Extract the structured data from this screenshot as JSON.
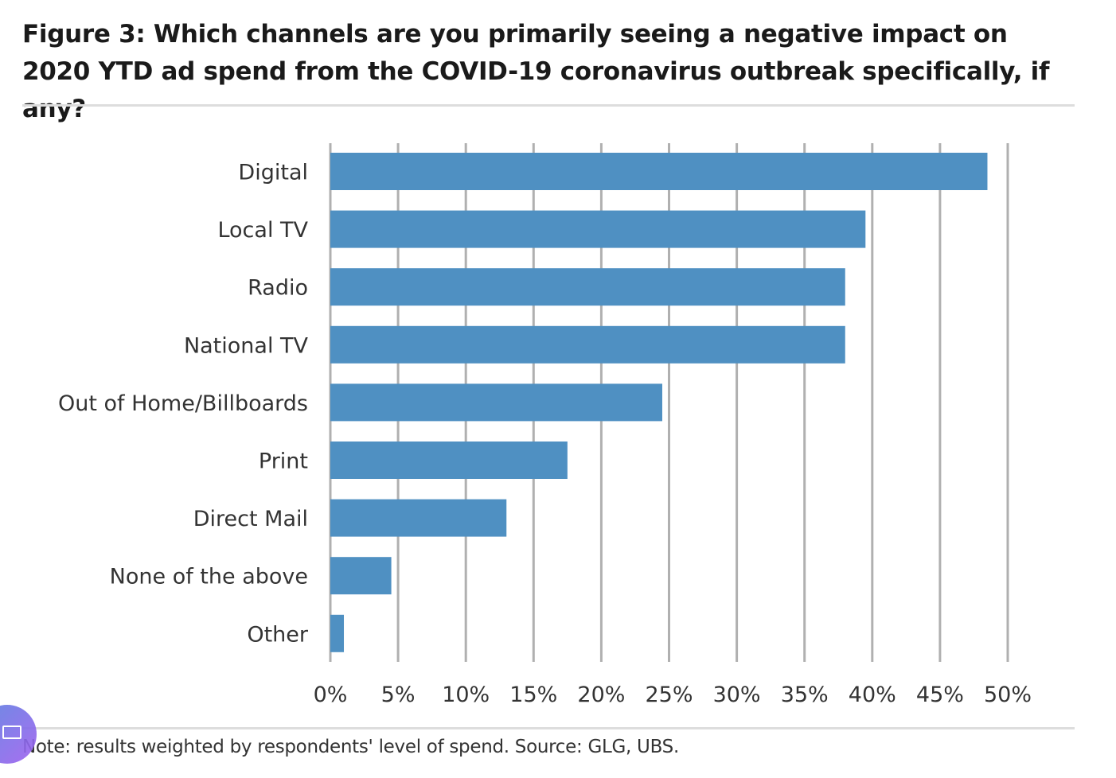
{
  "title": "Figure 3: Which channels are you primarily seeing a negative impact on 2020 YTD ad spend from the COVID-19 coronavirus outbreak specifically, if any?",
  "note": "Note: results weighted by respondents' level of spend. Source: GLG, UBS.",
  "overlay_icon": "screen-share-icon",
  "chart_data": {
    "type": "bar",
    "orientation": "horizontal",
    "categories": [
      "Digital",
      "Local TV",
      "Radio",
      "National TV",
      "Out of Home/Billboards",
      "Print",
      "Direct Mail",
      "None of the above",
      "Other"
    ],
    "values": [
      48.5,
      39.5,
      38.0,
      38.0,
      24.5,
      17.5,
      13.0,
      4.5,
      1.0
    ],
    "unit": "%",
    "xlim": [
      0,
      50
    ],
    "xticks": [
      "0%",
      "5%",
      "10%",
      "15%",
      "20%",
      "25%",
      "30%",
      "35%",
      "40%",
      "45%",
      "50%"
    ],
    "grid": "vertical",
    "bar_color": "#4f90c2",
    "grid_color": "#b0b0b0"
  }
}
